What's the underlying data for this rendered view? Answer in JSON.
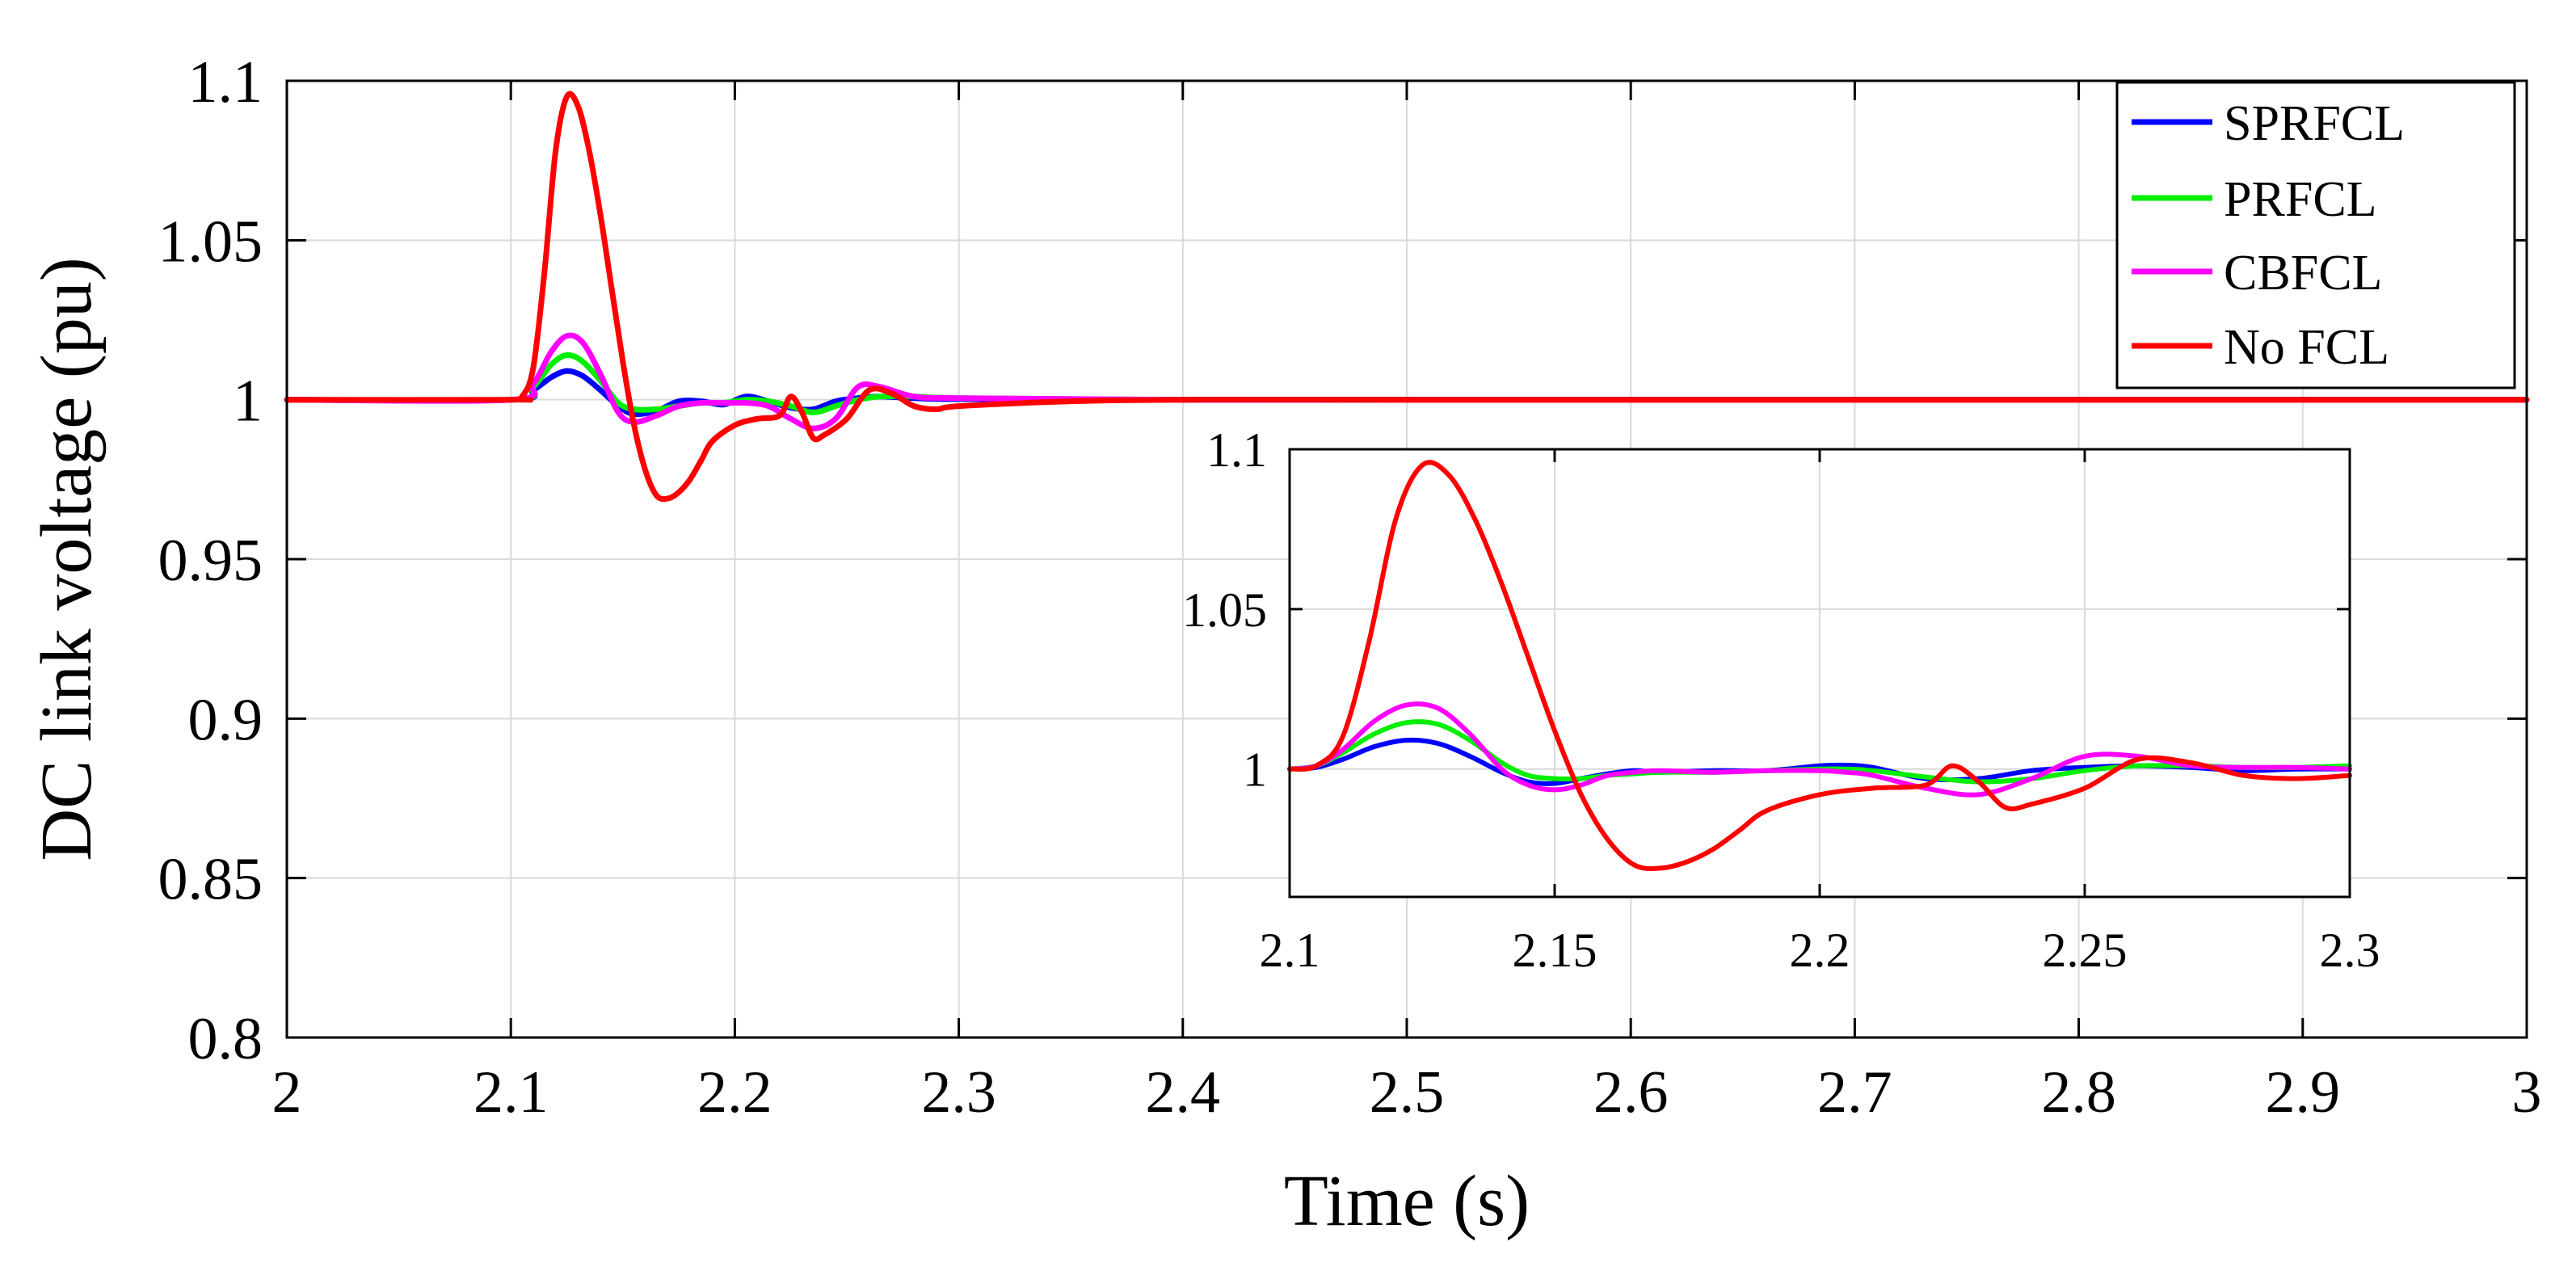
{
  "chart_data": [
    {
      "type": "line",
      "title": "",
      "xlabel": "Time (s)",
      "ylabel": "DC link voltage (pu)",
      "xlim": [
        2,
        3
      ],
      "ylim": [
        0.8,
        1.1
      ],
      "grid": true,
      "legend": "top-right",
      "xticks": [
        2,
        2.1,
        2.2,
        2.3,
        2.4,
        2.5,
        2.6,
        2.7,
        2.8,
        2.9,
        3
      ],
      "xtick_labels": [
        "2",
        "2.1",
        "2.2",
        "2.3",
        "2.4",
        "2.5",
        "2.6",
        "2.7",
        "2.8",
        "2.9",
        "3"
      ],
      "yticks": [
        0.8,
        0.85,
        0.9,
        0.95,
        1,
        1.05,
        1.1
      ],
      "ytick_labels": [
        "0.8",
        "0.85",
        "0.9",
        "0.95",
        "1",
        "1.05",
        "1.1"
      ],
      "series": [
        {
          "name": "SPRFCL",
          "color": "#0000ff",
          "x": [
            2,
            2.1,
            2.11,
            2.118,
            2.125,
            2.132,
            2.14,
            2.148,
            2.155,
            2.165,
            2.175,
            2.185,
            2.195,
            2.205,
            2.215,
            2.225,
            2.235,
            2.245,
            2.255,
            2.265,
            2.28,
            2.3,
            2.4,
            2.5,
            3
          ],
          "y": [
            1,
            1,
            1.003,
            1.007,
            1.009,
            1.0075,
            1.003,
            0.998,
            0.9955,
            0.9965,
            0.9995,
            0.9995,
            0.9985,
            1.001,
            0.9995,
            0.9975,
            0.997,
            0.9995,
            1.0005,
            1.001,
            1.0005,
            1.0002,
            1,
            1,
            1
          ]
        },
        {
          "name": "PRFCL",
          "color": "#00ee00",
          "x": [
            2,
            2.1,
            2.11,
            2.118,
            2.125,
            2.132,
            2.14,
            2.148,
            2.155,
            2.165,
            2.175,
            2.185,
            2.195,
            2.205,
            2.215,
            2.225,
            2.235,
            2.245,
            2.255,
            2.265,
            2.28,
            2.3,
            2.4,
            2.5,
            3
          ],
          "y": [
            1,
            1,
            1.004,
            1.011,
            1.014,
            1.012,
            1.006,
            0.999,
            0.997,
            0.997,
            0.998,
            0.999,
            0.999,
            1.0,
            0.9995,
            0.998,
            0.996,
            0.998,
            1.0,
            1.001,
            1.001,
            1.0005,
            1,
            1,
            1
          ]
        },
        {
          "name": "CBFCL",
          "color": "#ff00ff",
          "x": [
            2,
            2.1,
            2.11,
            2.118,
            2.125,
            2.132,
            2.14,
            2.148,
            2.155,
            2.165,
            2.175,
            2.185,
            2.195,
            2.205,
            2.215,
            2.225,
            2.235,
            2.245,
            2.255,
            2.265,
            2.28,
            2.3,
            2.4,
            2.5,
            3
          ],
          "y": [
            1,
            1,
            1.005,
            1.015,
            1.02,
            1.018,
            1.008,
            0.996,
            0.993,
            0.995,
            0.998,
            0.999,
            0.999,
            0.999,
            0.998,
            0.994,
            0.991,
            0.994,
            1.004,
            1.004,
            1.001,
            1.0005,
            1,
            1,
            1
          ]
        },
        {
          "name": "No FCL",
          "color": "#ff0000",
          "x": [
            2,
            2.1,
            2.105,
            2.11,
            2.115,
            2.12,
            2.125,
            2.13,
            2.135,
            2.14,
            2.145,
            2.15,
            2.155,
            2.16,
            2.165,
            2.17,
            2.175,
            2.18,
            2.185,
            2.19,
            2.2,
            2.21,
            2.22,
            2.225,
            2.23,
            2.235,
            2.24,
            2.25,
            2.26,
            2.27,
            2.28,
            2.29,
            2.3,
            2.35,
            2.4,
            2.5,
            3
          ],
          "y": [
            1,
            1,
            1.001,
            1.01,
            1.04,
            1.078,
            1.095,
            1.092,
            1.078,
            1.058,
            1.035,
            1.012,
            0.992,
            0.978,
            0.97,
            0.969,
            0.971,
            0.975,
            0.981,
            0.987,
            0.992,
            0.994,
            0.995,
            1.001,
            0.996,
            0.988,
            0.989,
            0.994,
            1.003,
            1.002,
            0.998,
            0.997,
            0.998,
            0.9995,
            1,
            1,
            1
          ]
        }
      ]
    },
    {
      "type": "line",
      "title": "",
      "xlabel": "",
      "ylabel": "",
      "xlim": [
        2.1,
        2.3
      ],
      "ylim": [
        0.96,
        1.1
      ],
      "grid": true,
      "legend": "none",
      "xticks": [
        2.1,
        2.15,
        2.2,
        2.25,
        2.3
      ],
      "xtick_labels": [
        "2.1",
        "2.15",
        "2.2",
        "2.25",
        "2.3"
      ],
      "yticks": [
        1,
        1.05,
        1.1
      ],
      "ytick_labels": [
        "1",
        "1.05",
        "1.1"
      ],
      "series": [
        {
          "name": "SPRFCL",
          "color": "#0000ff",
          "x": [
            2.1,
            2.105,
            2.11,
            2.116,
            2.122,
            2.128,
            2.134,
            2.14,
            2.145,
            2.15,
            2.155,
            2.16,
            2.165,
            2.17,
            2.18,
            2.19,
            2.2,
            2.205,
            2.21,
            2.22,
            2.23,
            2.24,
            2.25,
            2.26,
            2.27,
            2.28,
            2.29,
            2.3
          ],
          "y": [
            1,
            1.0005,
            1.003,
            1.007,
            1.009,
            1.008,
            1.004,
            0.999,
            0.996,
            0.9955,
            0.997,
            0.9985,
            0.9995,
            0.999,
            0.9995,
            0.9995,
            1.001,
            1.0012,
            1.0005,
            0.997,
            0.997,
            0.9995,
            1.0005,
            1.001,
            1.0005,
            0.9995,
            1.0,
            1.0
          ]
        },
        {
          "name": "PRFCL",
          "color": "#00ee00",
          "x": [
            2.1,
            2.105,
            2.11,
            2.116,
            2.122,
            2.128,
            2.134,
            2.14,
            2.145,
            2.15,
            2.155,
            2.16,
            2.165,
            2.17,
            2.18,
            2.19,
            2.2,
            2.205,
            2.21,
            2.22,
            2.23,
            2.24,
            2.25,
            2.26,
            2.27,
            2.28,
            2.29,
            2.3
          ],
          "y": [
            1,
            1.001,
            1.005,
            1.011,
            1.0145,
            1.014,
            1.009,
            1.002,
            0.998,
            0.997,
            0.997,
            0.998,
            0.9985,
            0.999,
            0.999,
            0.9995,
            1.0,
            1.0,
            0.9995,
            0.9975,
            0.996,
            0.997,
            0.9995,
            1.001,
            1.001,
            1.0005,
            1.0005,
            1.001
          ]
        },
        {
          "name": "CBFCL",
          "color": "#ff00ff",
          "x": [
            2.1,
            2.105,
            2.11,
            2.116,
            2.122,
            2.128,
            2.134,
            2.14,
            2.145,
            2.15,
            2.155,
            2.16,
            2.165,
            2.17,
            2.18,
            2.19,
            2.2,
            2.205,
            2.21,
            2.22,
            2.23,
            2.24,
            2.25,
            2.26,
            2.27,
            2.28,
            2.29,
            2.3
          ],
          "y": [
            1,
            1.001,
            1.006,
            1.015,
            1.02,
            1.019,
            1.011,
            1.0,
            0.995,
            0.9935,
            0.995,
            0.998,
            0.999,
            0.9995,
            0.999,
            0.9995,
            0.9995,
            0.999,
            0.998,
            0.994,
            0.992,
            0.997,
            1.004,
            1.004,
            1.001,
            1.0005,
            1.0005,
            1.0
          ]
        },
        {
          "name": "No FCL",
          "color": "#ff0000",
          "x": [
            2.1,
            2.105,
            2.11,
            2.115,
            2.12,
            2.125,
            2.13,
            2.135,
            2.14,
            2.145,
            2.15,
            2.155,
            2.16,
            2.165,
            2.17,
            2.175,
            2.18,
            2.185,
            2.19,
            2.2,
            2.21,
            2.22,
            2.225,
            2.23,
            2.235,
            2.24,
            2.25,
            2.26,
            2.27,
            2.28,
            2.29,
            2.3
          ],
          "y": [
            1,
            1.001,
            1.01,
            1.04,
            1.078,
            1.095,
            1.092,
            1.078,
            1.058,
            1.035,
            1.012,
            0.992,
            0.978,
            0.97,
            0.969,
            0.971,
            0.975,
            0.981,
            0.987,
            0.992,
            0.994,
            0.995,
            1.001,
            0.996,
            0.988,
            0.989,
            0.994,
            1.003,
            1.002,
            0.998,
            0.997,
            0.998
          ]
        }
      ]
    }
  ]
}
